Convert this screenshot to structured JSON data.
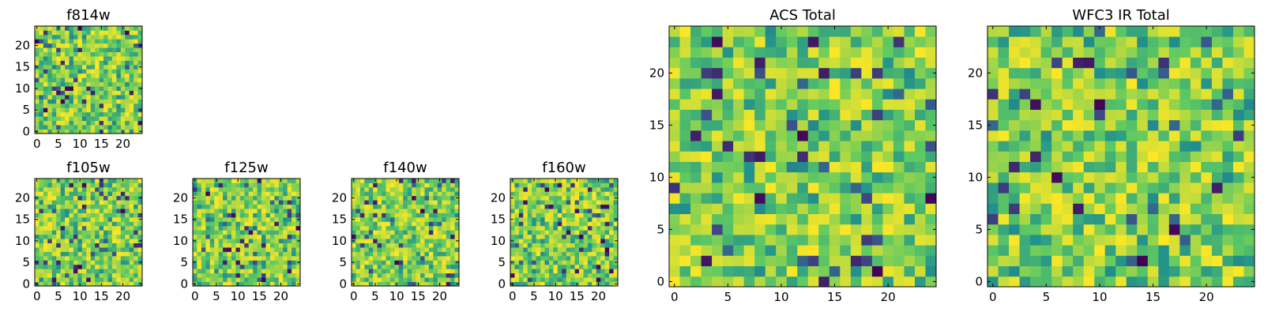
{
  "chart_data": [
    {
      "type": "heatmap",
      "title": "f814w",
      "xticks": [
        "0",
        "5",
        "10",
        "15",
        "20"
      ],
      "yticks": [
        "0",
        "5",
        "10",
        "15",
        "20"
      ],
      "xlim": [
        -0.5,
        24.5
      ],
      "ylim": [
        -0.5,
        24.5
      ],
      "grid_size": 25,
      "colormap": "viridis",
      "seed": 11,
      "vmin_frac": 0.0
    },
    {
      "type": "heatmap",
      "title": "f105w",
      "xticks": [
        "0",
        "5",
        "10",
        "15",
        "20"
      ],
      "yticks": [
        "0",
        "5",
        "10",
        "15",
        "20"
      ],
      "xlim": [
        -0.5,
        24.5
      ],
      "ylim": [
        -0.5,
        24.5
      ],
      "grid_size": 25,
      "colormap": "viridis",
      "seed": 23
    },
    {
      "type": "heatmap",
      "title": "f125w",
      "xticks": [
        "0",
        "5",
        "10",
        "15",
        "20"
      ],
      "yticks": [
        "0",
        "5",
        "10",
        "15",
        "20"
      ],
      "xlim": [
        -0.5,
        24.5
      ],
      "ylim": [
        -0.5,
        24.5
      ],
      "grid_size": 25,
      "colormap": "viridis",
      "seed": 37
    },
    {
      "type": "heatmap",
      "title": "f140w",
      "xticks": [
        "0",
        "5",
        "10",
        "15",
        "20"
      ],
      "yticks": [
        "0",
        "5",
        "10",
        "15",
        "20"
      ],
      "xlim": [
        -0.5,
        24.5
      ],
      "ylim": [
        -0.5,
        24.5
      ],
      "grid_size": 25,
      "colormap": "viridis",
      "seed": 41
    },
    {
      "type": "heatmap",
      "title": "f160w",
      "xticks": [
        "0",
        "5",
        "10",
        "15",
        "20"
      ],
      "yticks": [
        "0",
        "5",
        "10",
        "15",
        "20"
      ],
      "xlim": [
        -0.5,
        24.5
      ],
      "ylim": [
        -0.5,
        24.5
      ],
      "grid_size": 25,
      "colormap": "viridis",
      "seed": 53
    },
    {
      "type": "heatmap",
      "title": "ACS Total",
      "xticks": [
        "0",
        "5",
        "10",
        "15",
        "20"
      ],
      "yticks": [
        "0",
        "5",
        "10",
        "15",
        "20"
      ],
      "xlim": [
        -0.5,
        24.5
      ],
      "ylim": [
        -0.5,
        24.5
      ],
      "grid_size": 25,
      "colormap": "viridis",
      "seed": 67
    },
    {
      "type": "heatmap",
      "title": "WFC3 IR Total",
      "xticks": [
        "0",
        "5",
        "10",
        "15",
        "20"
      ],
      "yticks": [
        "0",
        "5",
        "10",
        "15",
        "20"
      ],
      "xlim": [
        -0.5,
        24.5
      ],
      "ylim": [
        -0.5,
        24.5
      ],
      "grid_size": 25,
      "colormap": "viridis",
      "seed": 79
    }
  ],
  "colors": {
    "viridis_stops": [
      "#440154",
      "#3b528b",
      "#21918c",
      "#5ec962",
      "#fde725"
    ]
  }
}
